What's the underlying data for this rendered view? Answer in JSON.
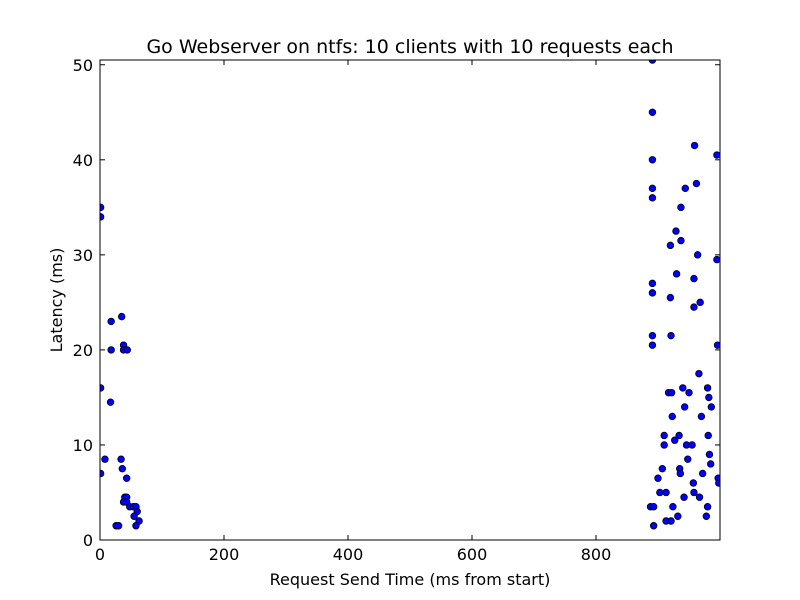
{
  "chart_data": {
    "type": "scatter",
    "title": "Go Webserver on ntfs: 10 clients with 10 requests each",
    "xlabel": "Request Send Time (ms from start)",
    "ylabel": "Latency (ms)",
    "xlim": [
      0,
      1000
    ],
    "ylim": [
      0,
      50.5
    ],
    "xticks": [
      0,
      200,
      400,
      600,
      800
    ],
    "yticks": [
      0,
      10,
      20,
      30,
      40,
      50
    ],
    "grid": false,
    "marker_color": "#0000ff",
    "marker_edge_color": "#000000",
    "points": [
      [
        1,
        35
      ],
      [
        1,
        34
      ],
      [
        1,
        16
      ],
      [
        1,
        7
      ],
      [
        8,
        8.5
      ],
      [
        18,
        23
      ],
      [
        18,
        20
      ],
      [
        17,
        14.5
      ],
      [
        35,
        23.5
      ],
      [
        38,
        20.5
      ],
      [
        38,
        20
      ],
      [
        44,
        20
      ],
      [
        34,
        8.5
      ],
      [
        36,
        7.5
      ],
      [
        43,
        6.5
      ],
      [
        40,
        4.5
      ],
      [
        43,
        4.5
      ],
      [
        38,
        4
      ],
      [
        43,
        4
      ],
      [
        48,
        3.5
      ],
      [
        54,
        3.5
      ],
      [
        58,
        3.5
      ],
      [
        60,
        3
      ],
      [
        55,
        2.5
      ],
      [
        63,
        2
      ],
      [
        58,
        1.5
      ],
      [
        26,
        1.5
      ],
      [
        30,
        1.5
      ],
      [
        891,
        50.5
      ],
      [
        891,
        45
      ],
      [
        891,
        40
      ],
      [
        891,
        37
      ],
      [
        891,
        36
      ],
      [
        891,
        27
      ],
      [
        891,
        26
      ],
      [
        891,
        21.5
      ],
      [
        891,
        20.5
      ],
      [
        888,
        3.5
      ],
      [
        893,
        3.5
      ],
      [
        893,
        1.5
      ],
      [
        900,
        6.5
      ],
      [
        903,
        5
      ],
      [
        907,
        7.5
      ],
      [
        910,
        10
      ],
      [
        910,
        11
      ],
      [
        913,
        5
      ],
      [
        913,
        2
      ],
      [
        917,
        15.5
      ],
      [
        920,
        25.5
      ],
      [
        920,
        31
      ],
      [
        921,
        21.5
      ],
      [
        921,
        2
      ],
      [
        922,
        15.5
      ],
      [
        923,
        13
      ],
      [
        924,
        3.5
      ],
      [
        927,
        10.5
      ],
      [
        929,
        32.5
      ],
      [
        930,
        28
      ],
      [
        932,
        2.5
      ],
      [
        934,
        11
      ],
      [
        935,
        7.5
      ],
      [
        936,
        7
      ],
      [
        937,
        35
      ],
      [
        937,
        31.5
      ],
      [
        940,
        16
      ],
      [
        942,
        4.5
      ],
      [
        943,
        14
      ],
      [
        944,
        37
      ],
      [
        946,
        10
      ],
      [
        948,
        8.5
      ],
      [
        950,
        15.5
      ],
      [
        955,
        10
      ],
      [
        957,
        6
      ],
      [
        958,
        5
      ],
      [
        958,
        27.5
      ],
      [
        958,
        24.5
      ],
      [
        959,
        41.5
      ],
      [
        962,
        37.5
      ],
      [
        964,
        30
      ],
      [
        966,
        17.5
      ],
      [
        967,
        4.5
      ],
      [
        968,
        25
      ],
      [
        970,
        13
      ],
      [
        972,
        7
      ],
      [
        978,
        2.5
      ],
      [
        980,
        3.5
      ],
      [
        980,
        16
      ],
      [
        981,
        11
      ],
      [
        982,
        15
      ],
      [
        983,
        9
      ],
      [
        985,
        8
      ],
      [
        986,
        14
      ],
      [
        995,
        40.5
      ],
      [
        995,
        29.5
      ],
      [
        996,
        20.5
      ],
      [
        997,
        6.5
      ],
      [
        998,
        6
      ]
    ]
  }
}
